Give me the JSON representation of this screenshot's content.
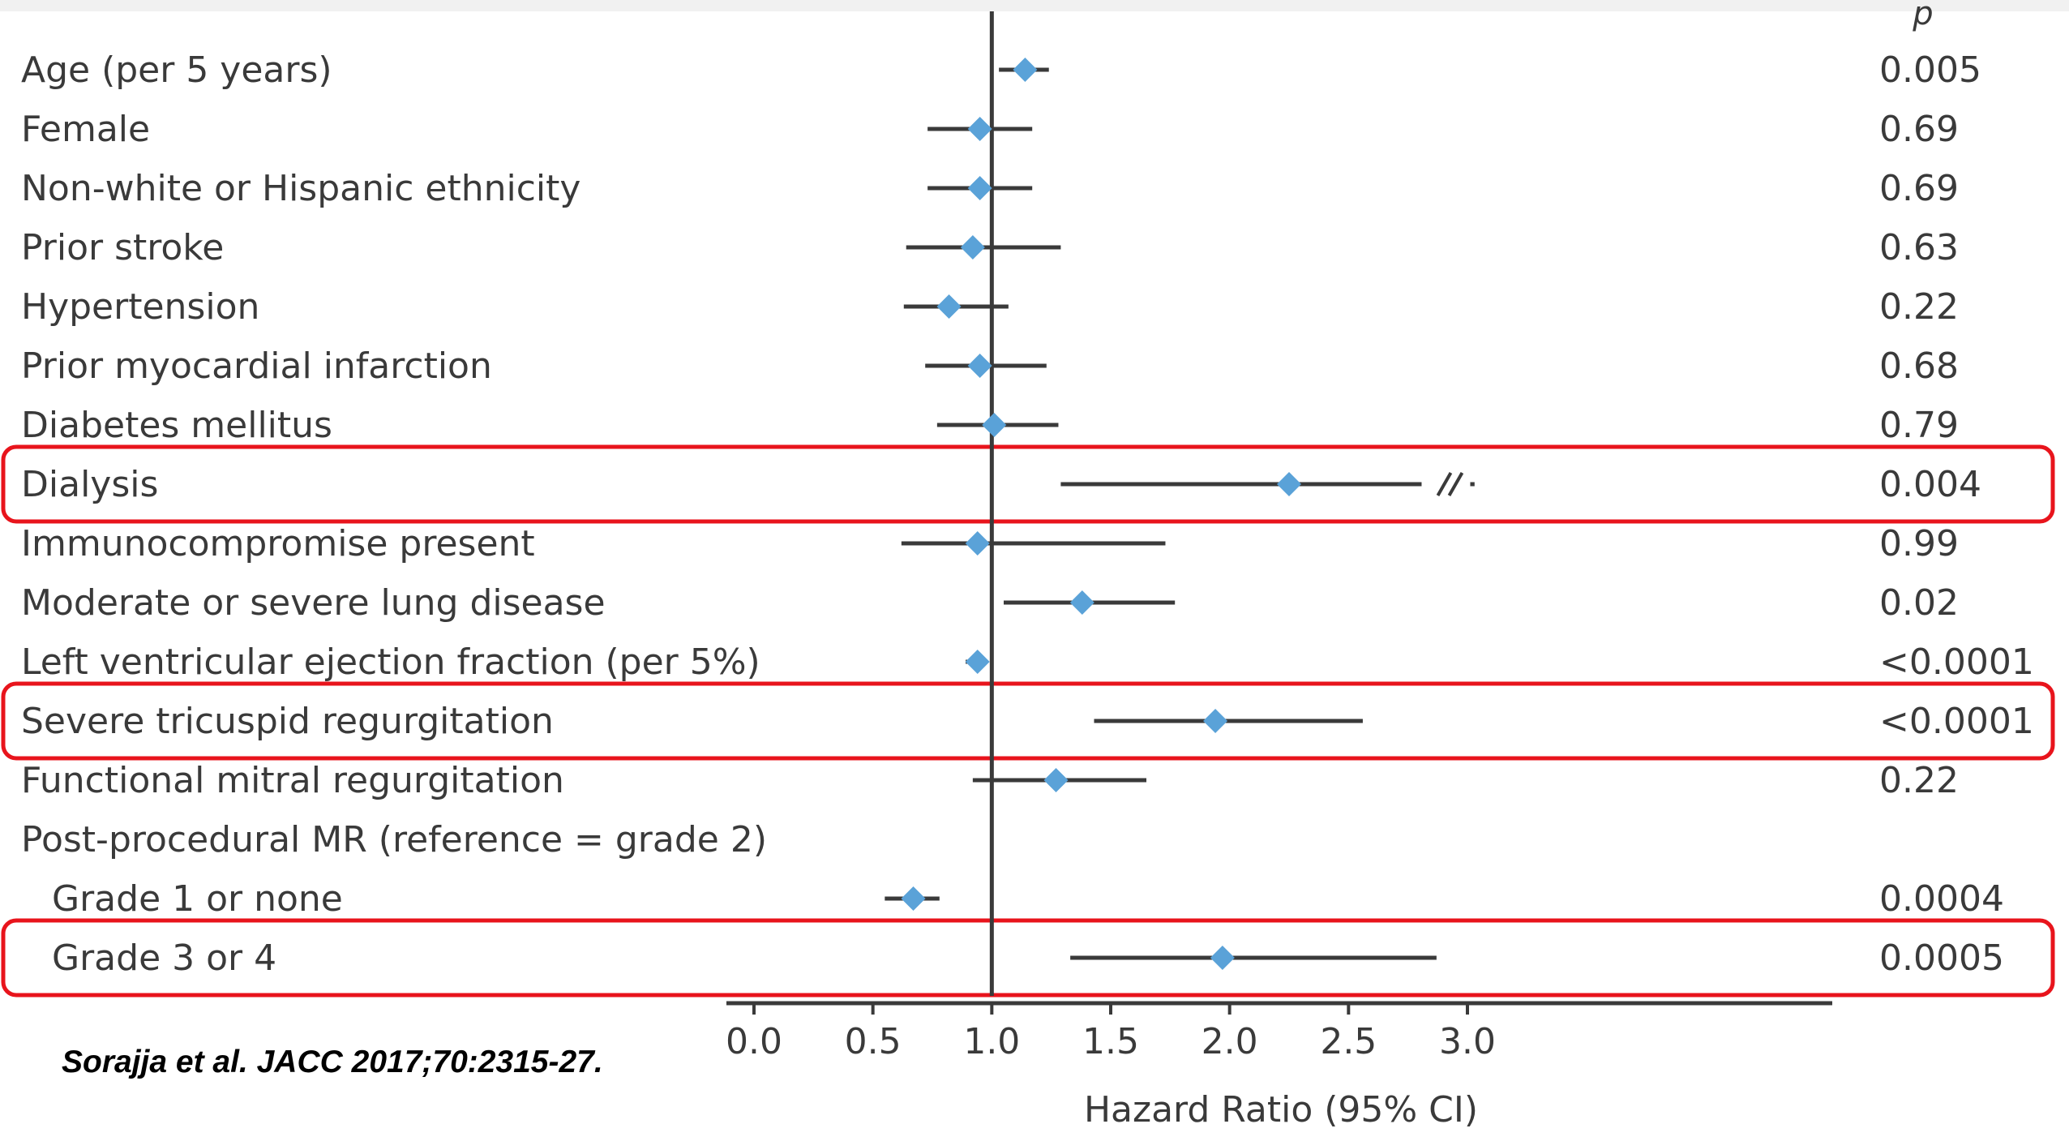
{
  "citation": "Sorajja et al. JACC 2017;70:2315-27.",
  "p_header": "p",
  "colors": {
    "marker": "#5aa2d8",
    "ci_line": "#3a3a3a",
    "highlight": "#e8141c",
    "axis": "#3a3a3a"
  },
  "chart_data": {
    "type": "forest",
    "xlabel": "Hazard Ratio (95% CI)",
    "xlim": [
      0.0,
      3.0
    ],
    "x_ticks": [
      "0.0",
      "0.5",
      "1.0",
      "1.5",
      "2.0",
      "2.5",
      "3.0"
    ],
    "reference_line": 1.0,
    "rows": [
      {
        "label": "Age (per 5 years)",
        "hr": 1.14,
        "lo": 1.03,
        "hi": 1.24,
        "p": "0.005"
      },
      {
        "label": "Female",
        "hr": 0.95,
        "lo": 0.73,
        "hi": 1.17,
        "p": "0.69"
      },
      {
        "label": "Non-white or Hispanic ethnicity",
        "hr": 0.95,
        "lo": 0.73,
        "hi": 1.17,
        "p": "0.69"
      },
      {
        "label": "Prior stroke",
        "hr": 0.92,
        "lo": 0.64,
        "hi": 1.29,
        "p": "0.63"
      },
      {
        "label": "Hypertension",
        "hr": 0.82,
        "lo": 0.63,
        "hi": 1.07,
        "p": "0.22"
      },
      {
        "label": "Prior myocardial infarction",
        "hr": 0.95,
        "lo": 0.72,
        "hi": 1.23,
        "p": "0.68"
      },
      {
        "label": "Diabetes mellitus",
        "hr": 1.01,
        "lo": 0.77,
        "hi": 1.28,
        "p": "0.79"
      },
      {
        "label": "Dialysis",
        "hr": 2.25,
        "lo": 1.29,
        "hi": 3.03,
        "p": "0.004",
        "highlight": true,
        "axis_break": true
      },
      {
        "label": "Immunocompromise present",
        "hr": 0.94,
        "lo": 0.62,
        "hi": 1.73,
        "p": "0.99"
      },
      {
        "label": "Moderate or severe lung disease",
        "hr": 1.38,
        "lo": 1.05,
        "hi": 1.77,
        "p": "0.02"
      },
      {
        "label": "Left ventricular ejection fraction (per 5%)",
        "hr": 0.94,
        "lo": 0.89,
        "hi": 0.98,
        "p": "<0.0001"
      },
      {
        "label": "Severe tricuspid regurgitation",
        "hr": 1.94,
        "lo": 1.43,
        "hi": 2.56,
        "p": "<0.0001",
        "highlight": true
      },
      {
        "label": "Functional mitral regurgitation",
        "hr": 1.27,
        "lo": 0.92,
        "hi": 1.65,
        "p": "0.22"
      },
      {
        "label": "Post-procedural MR (reference = grade 2)",
        "header": true
      },
      {
        "label": "Grade 1 or none",
        "hr": 0.67,
        "lo": 0.55,
        "hi": 0.78,
        "p": "0.0004",
        "indent": true
      },
      {
        "label": "Grade 3 or 4",
        "hr": 1.97,
        "lo": 1.33,
        "hi": 2.87,
        "p": "0.0005",
        "indent": true,
        "highlight": true
      }
    ]
  }
}
